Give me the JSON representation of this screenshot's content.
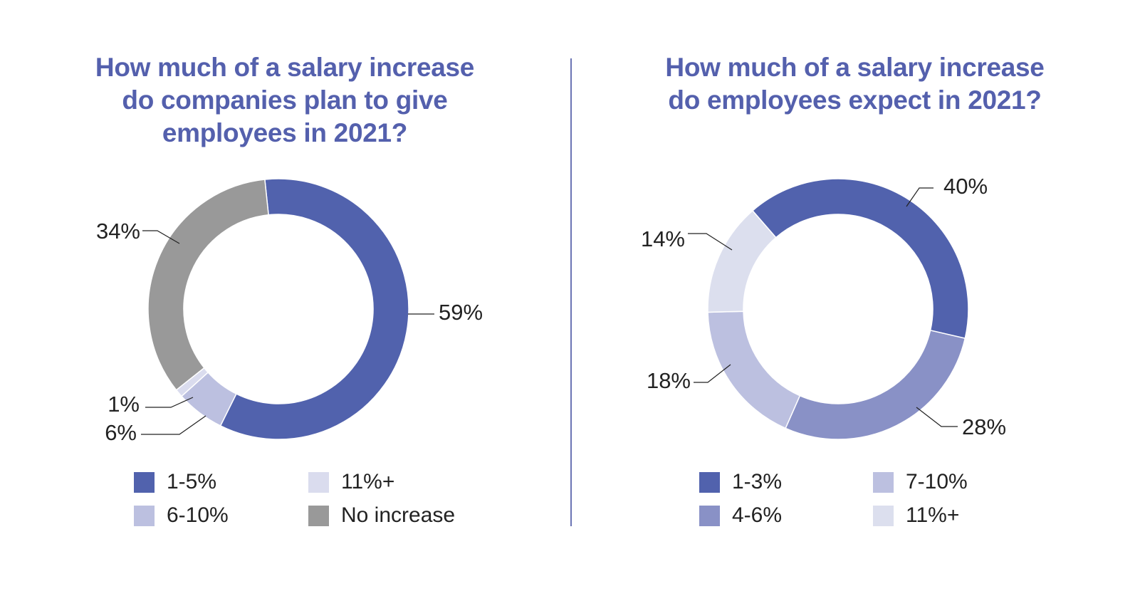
{
  "chart_data": [
    {
      "type": "pie",
      "title": "How much of a salary increase\ndo companies plan to give\nemployees in 2021?",
      "categories": [
        "1-5%",
        "6-10%",
        "11%+",
        "No increase"
      ],
      "values": [
        59,
        6,
        1,
        34
      ],
      "data_labels": [
        "59%",
        "6%",
        "1%",
        "34%"
      ],
      "colors": [
        "#5162ad",
        "#bcc0e0",
        "#dadcee",
        "#999999"
      ],
      "legend_position": "bottom"
    },
    {
      "type": "pie",
      "title": "How much of a salary increase\ndo employees expect in 2021?",
      "categories": [
        "1-3%",
        "4-6%",
        "7-10%",
        "11%+"
      ],
      "values": [
        40,
        28,
        18,
        14
      ],
      "data_labels": [
        "40%",
        "28%",
        "18%",
        "14%"
      ],
      "colors": [
        "#5162ad",
        "#8991c6",
        "#bcc0e0",
        "#dcdfee"
      ],
      "legend_position": "bottom"
    }
  ]
}
